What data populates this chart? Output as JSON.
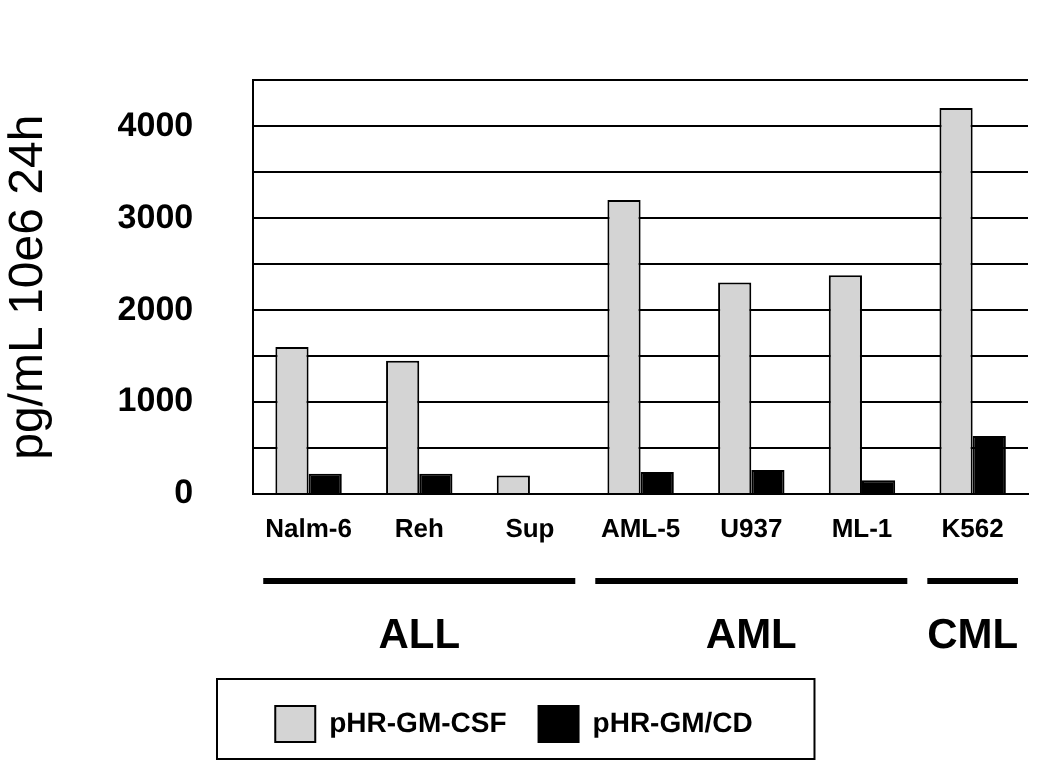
{
  "chart_data": {
    "type": "bar",
    "ylabel": "pg/mL 10e6 24h",
    "categories": [
      "Nalm-6",
      "Reh",
      "Sup",
      "AML-5",
      "U937",
      "ML-1",
      "K562"
    ],
    "series": [
      {
        "name": "pHR-GM-CSF",
        "color": "#d4d4d4",
        "values": [
          1600,
          1450,
          200,
          3200,
          2300,
          2380,
          4200
        ]
      },
      {
        "name": "pHR-GM/CD",
        "color": "#000000",
        "values": [
          220,
          220,
          0,
          240,
          260,
          150,
          630
        ]
      }
    ],
    "ylim": [
      0,
      4500
    ],
    "yticks": [
      0,
      {
        "value": 500,
        "label": null
      },
      1000,
      {
        "value": 1500,
        "label": null
      },
      2000,
      {
        "value": 2500,
        "label": null
      },
      3000,
      {
        "value": 3500,
        "label": null
      },
      4000,
      {
        "value": 4500,
        "label": null
      }
    ],
    "grid": "y",
    "legend": "bottom",
    "annotations": [
      "ALL",
      "AML",
      "CML"
    ]
  }
}
